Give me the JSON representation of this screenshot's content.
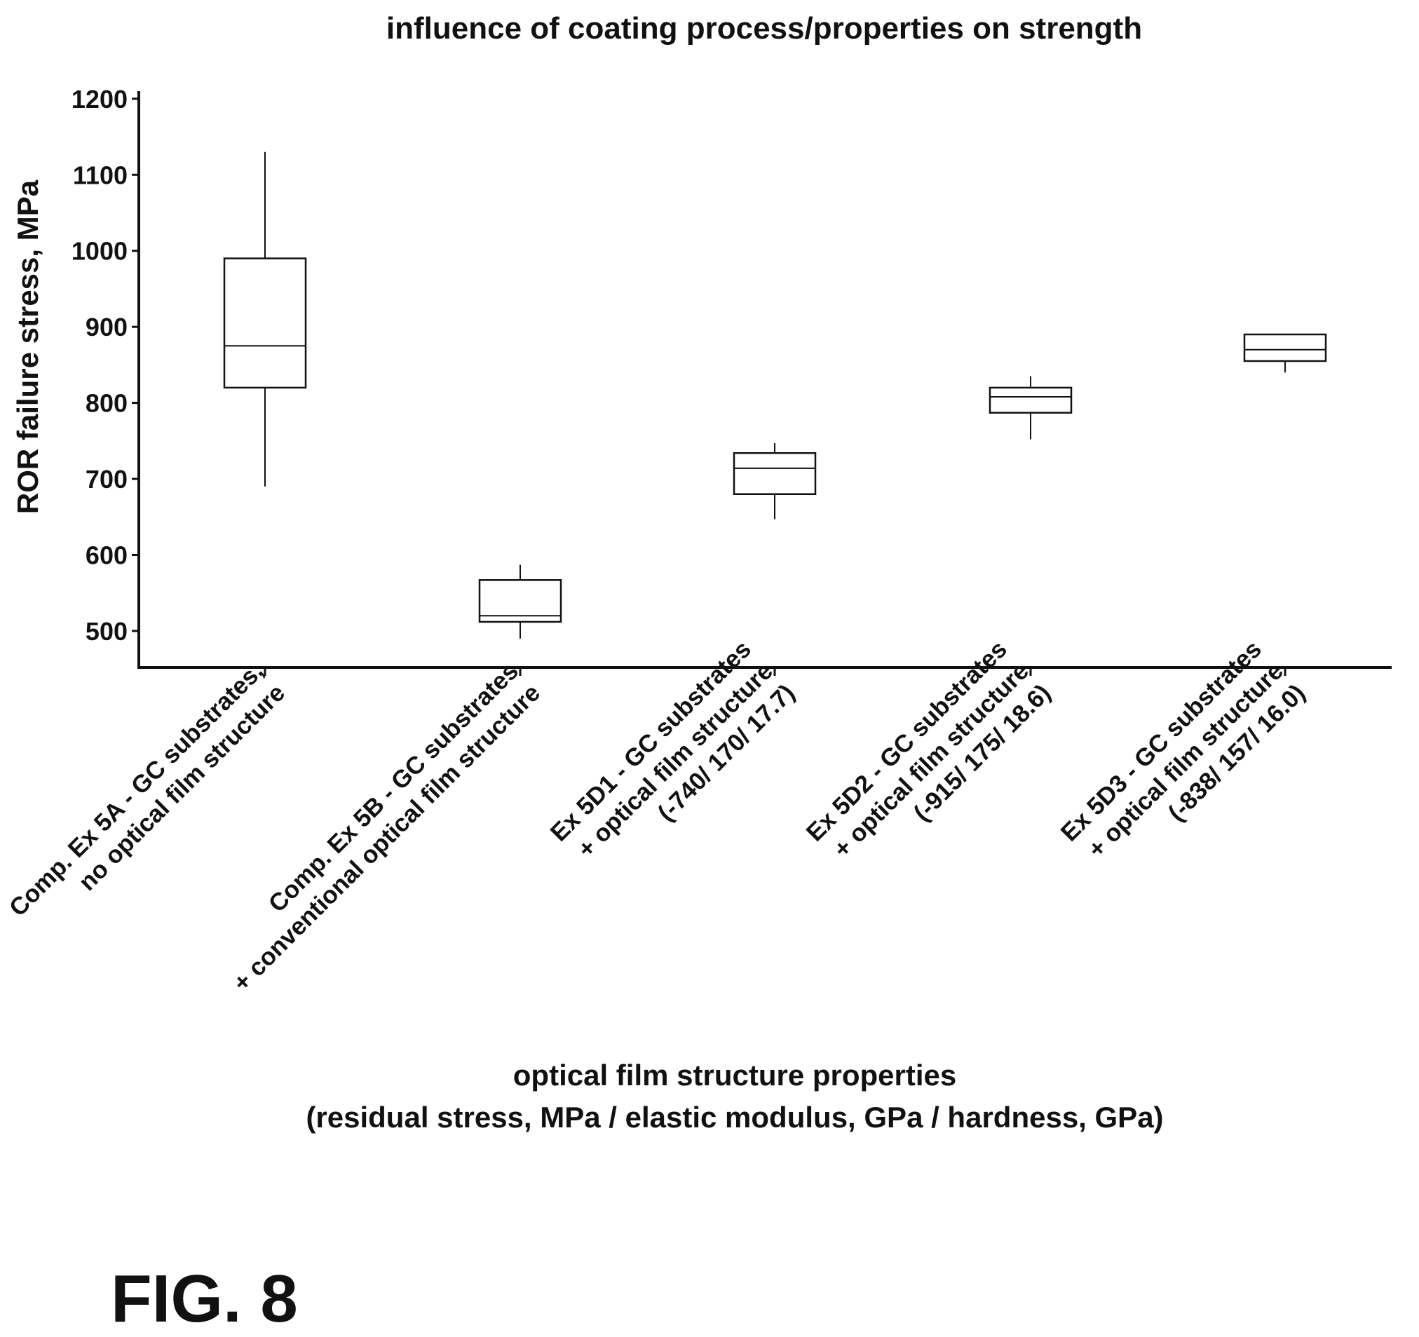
{
  "chart_data": {
    "type": "box",
    "title": "influence of coating process/properties on strength",
    "ylabel": "ROR failure stress, MPa",
    "xlabel_lines": [
      "optical film structure properties",
      "(residual stress, MPa / elastic modulus, GPa / hardness, GPa)"
    ],
    "ylim": [
      452,
      1210
    ],
    "yticks": [
      500,
      600,
      700,
      800,
      900,
      1000,
      1100,
      1200
    ],
    "categories": [
      {
        "lines": [
          "Comp. Ex 5A - GC substrates,",
          "no optical film structure"
        ]
      },
      {
        "lines": [
          "Comp. Ex 5B - GC substrates",
          "+ conventional optical film structure"
        ]
      },
      {
        "lines": [
          "Ex 5D1 - GC substrates",
          "+ optical film structure",
          "(-740/ 170/ 17.7)"
        ]
      },
      {
        "lines": [
          "Ex 5D2 - GC substrates",
          "+ optical film structure",
          "(-915/ 175/ 18.6)"
        ]
      },
      {
        "lines": [
          "Ex 5D3 - GC substrates",
          "+ optical film structure",
          "(-838/ 157/ 16.0)"
        ]
      }
    ],
    "boxes": [
      {
        "min": 690,
        "q1": 820,
        "median": 875,
        "q3": 990,
        "max": 1130
      },
      {
        "min": 490,
        "q1": 512,
        "median": 520,
        "q3": 567,
        "max": 587
      },
      {
        "min": 647,
        "q1": 680,
        "median": 714,
        "q3": 734,
        "max": 747
      },
      {
        "min": 752,
        "q1": 787,
        "median": 808,
        "q3": 820,
        "max": 835
      },
      {
        "min": 840,
        "q1": 855,
        "median": 870,
        "q3": 890,
        "max": 890
      }
    ],
    "grid": false,
    "legend": "none"
  },
  "figure_label": "FIG. 8"
}
